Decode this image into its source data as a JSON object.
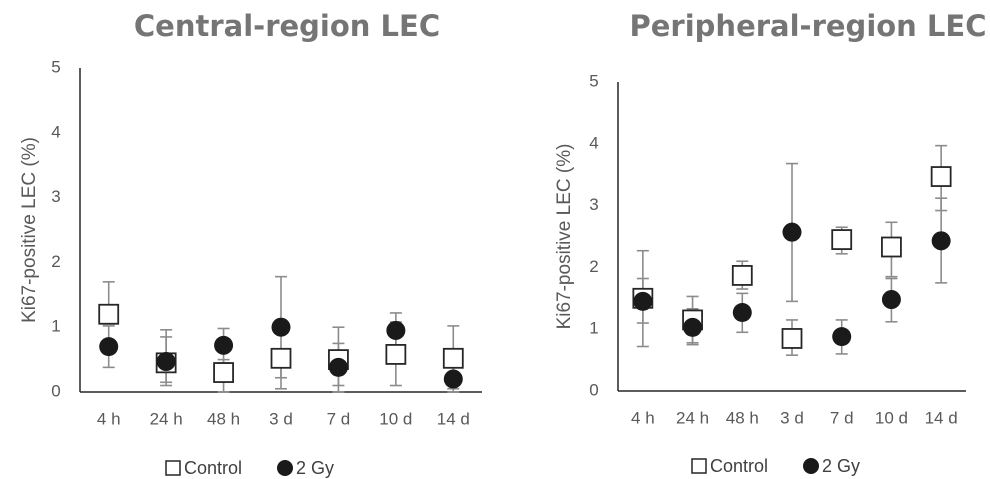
{
  "chart_data": [
    {
      "type": "scatter",
      "title": "Central-region LEC",
      "ylabel": "Ki67-positive LEC (%)",
      "xlabel": "",
      "categories": [
        "4 h",
        "24 h",
        "48 h",
        "3 d",
        "7 d",
        "10 d",
        "14 d"
      ],
      "ylim": [
        0,
        5
      ],
      "yticks": [
        "0",
        "1",
        "2",
        "3",
        "4",
        "5"
      ],
      "grid": false,
      "legend_position": "bottom",
      "series": [
        {
          "name": "Control",
          "marker": "open-square",
          "values": [
            1.2,
            0.45,
            0.3,
            0.52,
            0.5,
            0.58,
            0.52
          ],
          "err_lower": [
            1.05,
            0.15,
            0.0,
            0.22,
            0.1,
            0.1,
            0.0
          ],
          "err_upper": [
            1.7,
            0.85,
            0.5,
            1.78,
            1.0,
            1.08,
            1.02
          ]
        },
        {
          "name": "2 Gy",
          "marker": "filled-circle",
          "values": [
            0.7,
            0.47,
            0.72,
            1.0,
            0.38,
            0.95,
            0.2
          ],
          "err_lower": [
            0.38,
            0.1,
            0.45,
            0.05,
            0.0,
            0.68,
            0.05
          ],
          "err_upper": [
            1.02,
            0.96,
            0.98,
            0.4,
            0.75,
            1.22,
            0.4
          ]
        }
      ]
    },
    {
      "type": "scatter",
      "title": "Peripheral-region LEC",
      "ylabel": "Ki67-positive LEC (%)",
      "xlabel": "",
      "categories": [
        "4 h",
        "24 h",
        "48 h",
        "3 d",
        "7 d",
        "10 d",
        "14 d"
      ],
      "ylim": [
        0,
        5
      ],
      "yticks": [
        "0",
        "1",
        "2",
        "3",
        "4",
        "5"
      ],
      "grid": false,
      "legend_position": "bottom",
      "series": [
        {
          "name": "Control",
          "marker": "open-square",
          "values": [
            1.5,
            1.15,
            1.87,
            0.85,
            2.45,
            2.33,
            3.47
          ],
          "err_lower": [
            1.1,
            0.78,
            1.65,
            0.58,
            2.22,
            1.85,
            2.92
          ],
          "err_upper": [
            2.27,
            1.53,
            2.1,
            1.15,
            2.65,
            2.73,
            3.97
          ]
        },
        {
          "name": "2 Gy",
          "marker": "filled-circle",
          "values": [
            1.45,
            1.03,
            1.27,
            2.57,
            0.88,
            1.48,
            2.43
          ],
          "err_lower": [
            0.72,
            0.75,
            0.95,
            1.45,
            0.6,
            1.12,
            1.75
          ],
          "err_upper": [
            1.82,
            1.33,
            1.58,
            3.68,
            1.15,
            1.82,
            3.12
          ]
        }
      ]
    }
  ]
}
